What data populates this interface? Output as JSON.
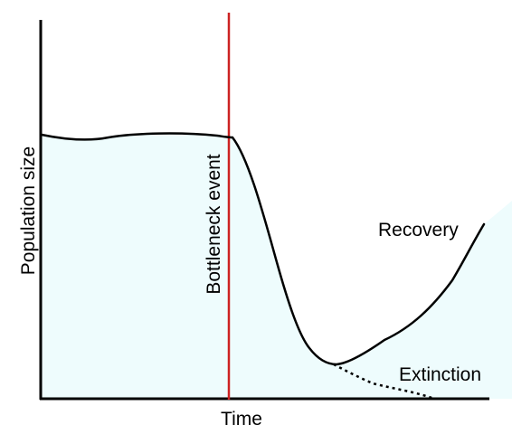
{
  "diagram": {
    "title": "",
    "labels": {
      "x_axis": "Time",
      "y_axis": "Population size",
      "event": "Bottleneck event",
      "recovery": "Recovery",
      "extinction": "Extinction"
    },
    "colors": {
      "fill": "#eefcfd",
      "curve": "#000000",
      "axes": "#000000",
      "event_line": "#cc2222",
      "background": "#ffffff"
    }
  }
}
